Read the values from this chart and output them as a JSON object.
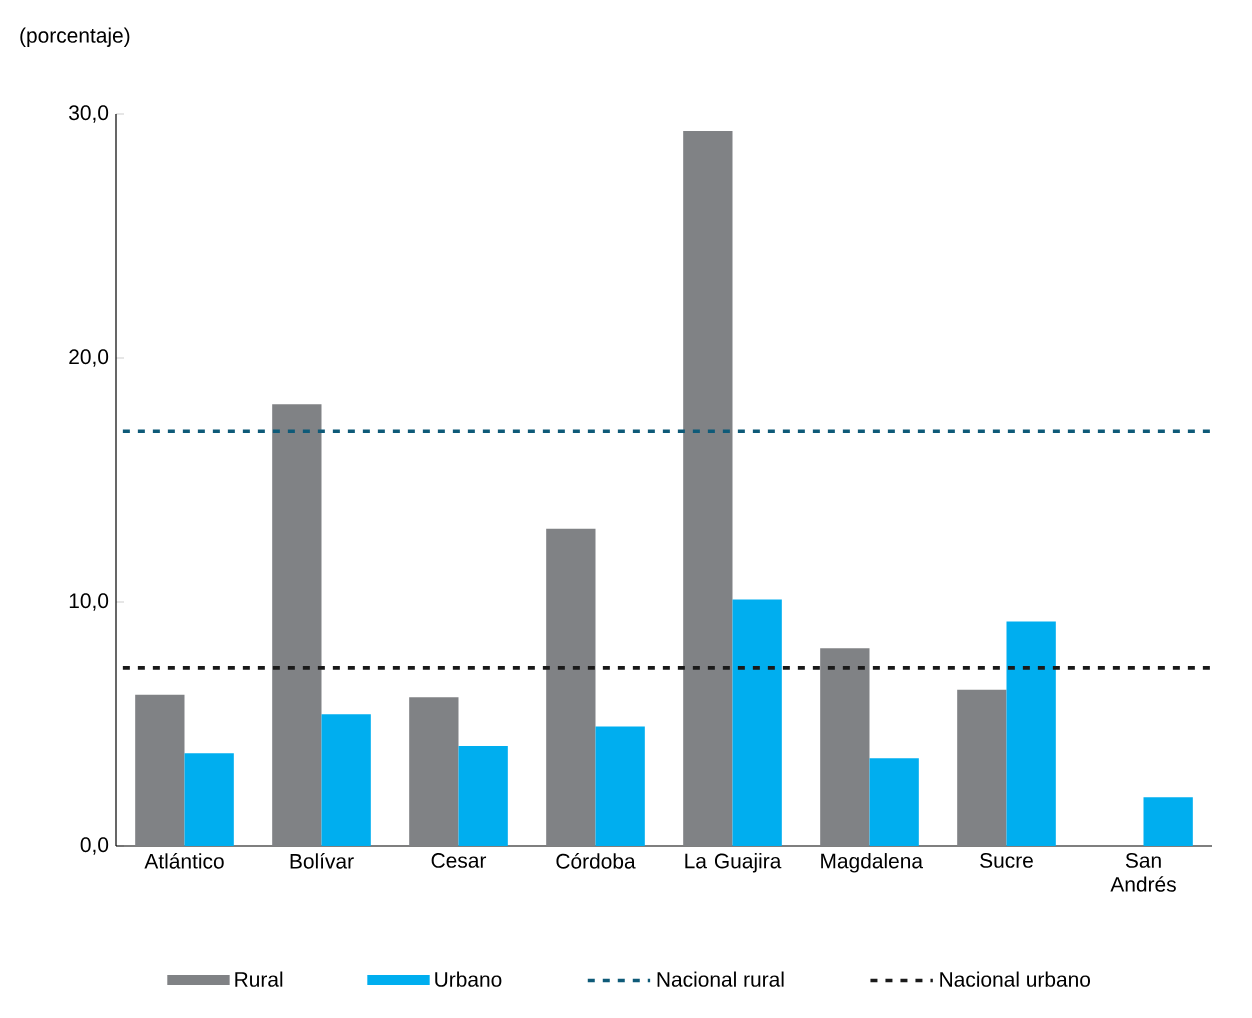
{
  "chart_data": {
    "type": "bar",
    "ylabel": "(porcentaje)",
    "categories": [
      "Atlántico",
      "Bolívar",
      "Cesar",
      "Córdoba",
      "La Guajira",
      "Magdalena",
      "Sucre",
      "San Andrés"
    ],
    "series": [
      {
        "name": "Rural",
        "color": "#808285",
        "values": [
          6.2,
          18.1,
          6.1,
          13.0,
          29.3,
          8.1,
          6.4,
          null
        ]
      },
      {
        "name": "Urbano",
        "color": "#00aeef",
        "values": [
          3.8,
          5.4,
          4.1,
          4.9,
          10.1,
          3.6,
          9.2,
          2.0
        ]
      }
    ],
    "ylim": [
      0,
      30
    ],
    "yticks": [
      {
        "value": 0,
        "label": "0,0"
      },
      {
        "value": 10,
        "label": "10,0"
      },
      {
        "value": 20,
        "label": "20,0"
      },
      {
        "value": 30,
        "label": "30,0"
      }
    ],
    "ref_lines": [
      {
        "axis": "y",
        "value": 17.0,
        "label": "Nacional rural",
        "color": "#0e5a78",
        "line_style": "dashed"
      },
      {
        "axis": "y",
        "value": 7.3,
        "label": "Nacional urbano",
        "color": "#1a1a1a",
        "line_style": "dashed"
      }
    ],
    "grid": false,
    "legend": "bottom"
  }
}
